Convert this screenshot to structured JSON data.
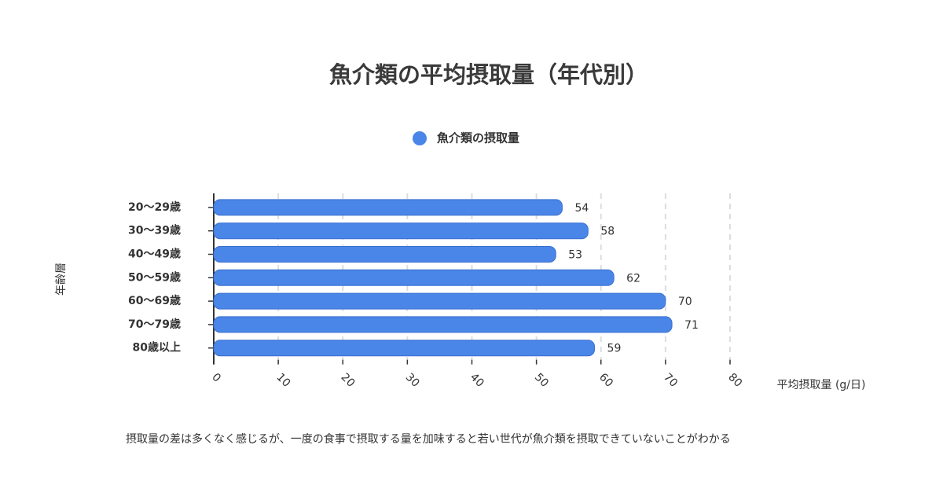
{
  "chart_data": {
    "type": "bar",
    "orientation": "horizontal",
    "title": "魚介類の平均摂取量（年代別）",
    "categories": [
      "20〜29歳",
      "30〜39歳",
      "40〜49歳",
      "50〜59歳",
      "60〜69歳",
      "70〜79歳",
      "80歳以上"
    ],
    "series": [
      {
        "name": "魚介類の摂取量",
        "color": "#4a86e8",
        "values": [
          54,
          58,
          53,
          62,
          70,
          71,
          59
        ]
      }
    ],
    "xlim": [
      0,
      80
    ],
    "xticks": [
      0,
      10,
      20,
      30,
      40,
      50,
      60,
      70,
      80
    ],
    "xlabel": "平均摂取量 (g/日)",
    "ylabel": "年齢層",
    "grid": true,
    "note": "摂取量の差は多くなく感じるが、一度の食事で摂取する量を加味すると若い世代が魚介類を摂取できていないことがわかる"
  }
}
